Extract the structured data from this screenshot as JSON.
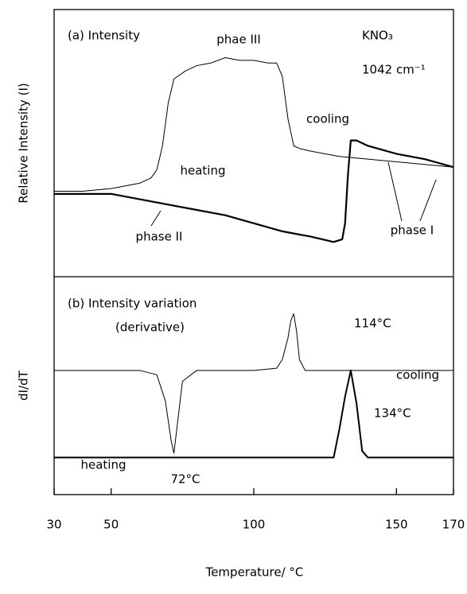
{
  "chart_data": [
    {
      "type": "line",
      "ylabel": "Relative Intensity (I)",
      "xlim": [
        30,
        170
      ],
      "ylim": [
        0,
        1
      ],
      "annotations": [
        "(a) Intensity",
        "KNO₃",
        "1042 cm⁻¹",
        "phae III",
        "phase II",
        "phase I"
      ],
      "series": [
        {
          "name": "cooling",
          "color": "#000000",
          "line_width": 1,
          "x": [
            30,
            40,
            50,
            60,
            64,
            66,
            68,
            70,
            72,
            76,
            80,
            85,
            90,
            95,
            100,
            105,
            108,
            110,
            112,
            114,
            116,
            120,
            130,
            140,
            150,
            160,
            170
          ],
          "values": [
            0.32,
            0.32,
            0.33,
            0.35,
            0.37,
            0.4,
            0.49,
            0.65,
            0.74,
            0.77,
            0.79,
            0.8,
            0.82,
            0.81,
            0.81,
            0.8,
            0.8,
            0.75,
            0.59,
            0.49,
            0.48,
            0.47,
            0.45,
            0.44,
            0.43,
            0.42,
            0.41
          ]
        },
        {
          "name": "heating",
          "color": "#000000",
          "line_width": 2.2,
          "x": [
            30,
            40,
            50,
            60,
            70,
            80,
            90,
            100,
            110,
            120,
            128,
            131,
            132,
            133,
            134,
            136,
            140,
            150,
            160,
            170
          ],
          "values": [
            0.31,
            0.31,
            0.31,
            0.29,
            0.27,
            0.25,
            0.23,
            0.2,
            0.17,
            0.15,
            0.13,
            0.14,
            0.2,
            0.38,
            0.51,
            0.51,
            0.49,
            0.46,
            0.44,
            0.41
          ]
        }
      ]
    },
    {
      "type": "line",
      "ylabel": "dI/dT",
      "xlabel": "Temperature/ °C",
      "xlim": [
        30,
        170
      ],
      "ylim": [
        0,
        1
      ],
      "xticks": [
        30,
        50,
        100,
        150,
        170
      ],
      "annotations": [
        "(b) Intensity variation",
        "(derivative)",
        "114°C",
        "134°C",
        "72°C"
      ],
      "series": [
        {
          "name": "cooling",
          "color": "#000000",
          "line_width": 1,
          "x": [
            30,
            40,
            50,
            60,
            66,
            69,
            71,
            72,
            73,
            75,
            80,
            90,
            100,
            108,
            110,
            112,
            113,
            114,
            115,
            116,
            118,
            120,
            130,
            140,
            150,
            160,
            170
          ],
          "values": [
            0.57,
            0.57,
            0.57,
            0.57,
            0.55,
            0.43,
            0.25,
            0.19,
            0.3,
            0.52,
            0.57,
            0.57,
            0.57,
            0.58,
            0.62,
            0.72,
            0.8,
            0.83,
            0.75,
            0.62,
            0.57,
            0.57,
            0.57,
            0.57,
            0.57,
            0.57,
            0.57
          ]
        },
        {
          "name": "heating",
          "color": "#000000",
          "line_width": 2,
          "x": [
            30,
            40,
            50,
            60,
            70,
            80,
            90,
            100,
            110,
            120,
            128,
            130,
            132,
            134,
            136,
            138,
            140,
            150,
            160,
            170
          ],
          "values": [
            0.17,
            0.17,
            0.17,
            0.17,
            0.17,
            0.17,
            0.17,
            0.17,
            0.17,
            0.17,
            0.17,
            0.3,
            0.45,
            0.57,
            0.42,
            0.2,
            0.17,
            0.17,
            0.17,
            0.17
          ]
        }
      ]
    }
  ]
}
